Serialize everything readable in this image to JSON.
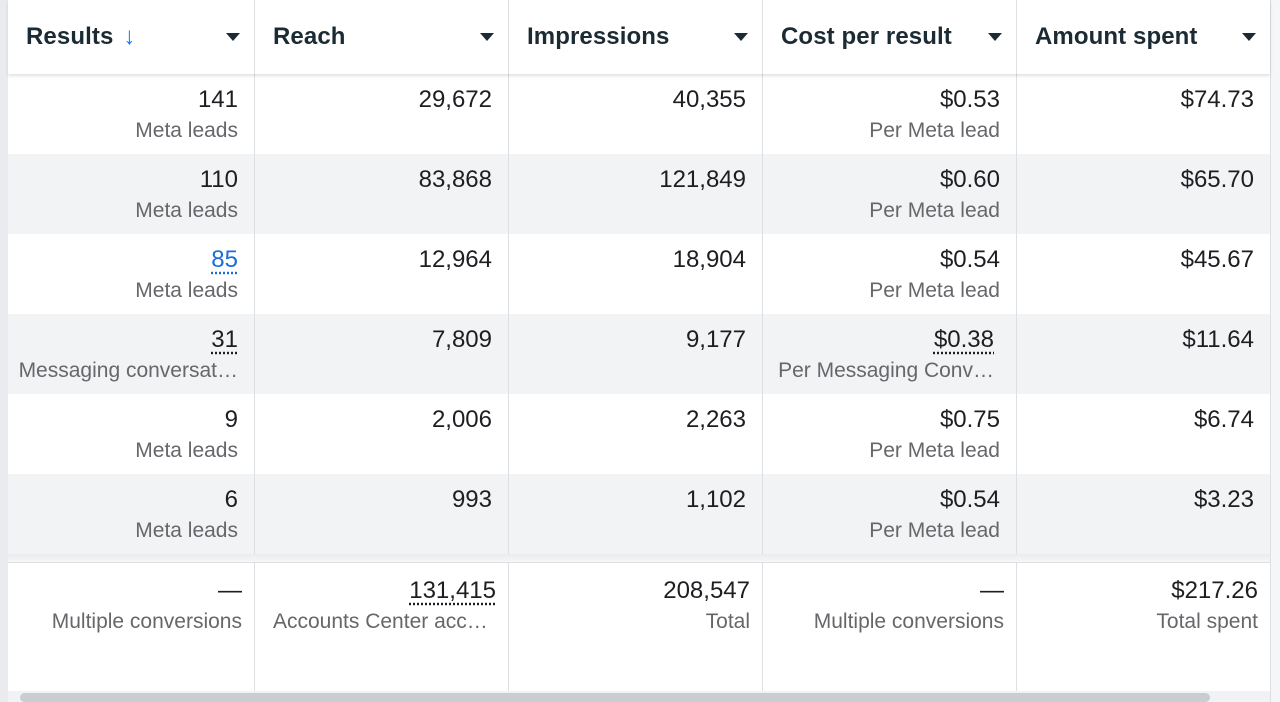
{
  "columns": [
    {
      "label": "Results",
      "sorted": true,
      "sort_icon": "arrow-down-icon"
    },
    {
      "label": "Reach"
    },
    {
      "label": "Impressions"
    },
    {
      "label": "Cost per result"
    },
    {
      "label": "Amount spent"
    }
  ],
  "rows": [
    {
      "results": "141",
      "results_sub": "Meta leads",
      "reach": "29,672",
      "impressions": "40,355",
      "cost": "$0.53",
      "cost_sub": "Per Meta lead",
      "spent": "$74.73"
    },
    {
      "results": "110",
      "results_sub": "Meta leads",
      "reach": "83,868",
      "impressions": "121,849",
      "cost": "$0.60",
      "cost_sub": "Per Meta lead",
      "spent": "$65.70"
    },
    {
      "results": "85",
      "results_sub": "Meta leads",
      "reach": "12,964",
      "impressions": "18,904",
      "cost": "$0.54",
      "cost_sub": "Per Meta lead",
      "spent": "$45.67"
    },
    {
      "results": "31",
      "results_sub": "Messaging conversat…",
      "reach": "7,809",
      "impressions": "9,177",
      "cost": "$0.38",
      "cost_sub": "Per Messaging Conv…",
      "spent": "$11.64"
    },
    {
      "results": "9",
      "results_sub": "Meta leads",
      "reach": "2,006",
      "impressions": "2,263",
      "cost": "$0.75",
      "cost_sub": "Per Meta lead",
      "spent": "$6.74"
    },
    {
      "results": "6",
      "results_sub": "Meta leads",
      "reach": "993",
      "impressions": "1,102",
      "cost": "$0.54",
      "cost_sub": "Per Meta lead",
      "spent": "$3.23"
    }
  ],
  "totals": {
    "results": "—",
    "results_sub": "Multiple conversions",
    "reach": "131,415",
    "reach_sub": "Accounts Center acco…",
    "impressions": "208,547",
    "impressions_sub": "Total",
    "cost": "—",
    "cost_sub": "Multiple conversions",
    "spent": "$217.26",
    "spent_sub": "Total spent"
  },
  "colors": {
    "link": "#1a6ed8",
    "sort_arrow": "#1877f2",
    "row_alt": "#f2f3f5",
    "secondary_text": "#65676b"
  }
}
